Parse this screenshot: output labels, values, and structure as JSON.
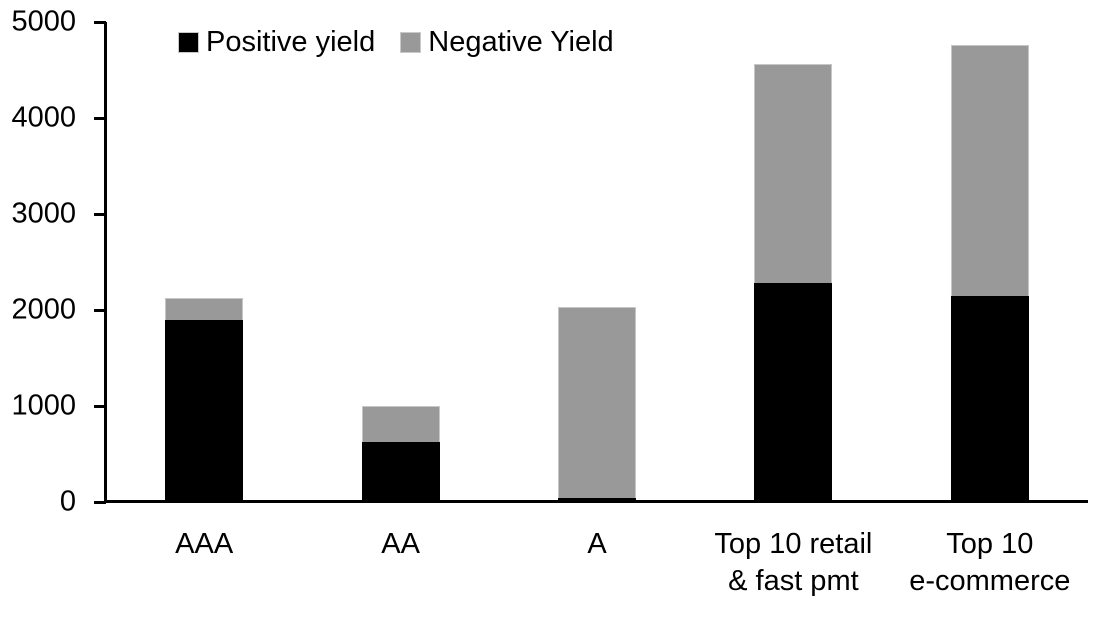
{
  "chart_data": {
    "type": "bar",
    "stacked": true,
    "categories": [
      "AAA",
      "AA",
      "A",
      "Top 10 retail\n& fast pmt",
      "Top 10\ne-commerce"
    ],
    "series": [
      {
        "name": "Positive yield",
        "color": "#000000",
        "values": [
          1900,
          620,
          40,
          2280,
          2150
        ]
      },
      {
        "name": "Negative Yield",
        "color": "#999999",
        "values": [
          225,
          380,
          1990,
          2280,
          2610
        ]
      }
    ],
    "ylim": [
      0,
      5000
    ],
    "yticks": [
      0,
      1000,
      2000,
      3000,
      4000,
      5000
    ],
    "xlabel": "",
    "ylabel": "",
    "grid": false,
    "legend_position": "top",
    "background": "#ffffff",
    "axis_color": "#000000"
  }
}
